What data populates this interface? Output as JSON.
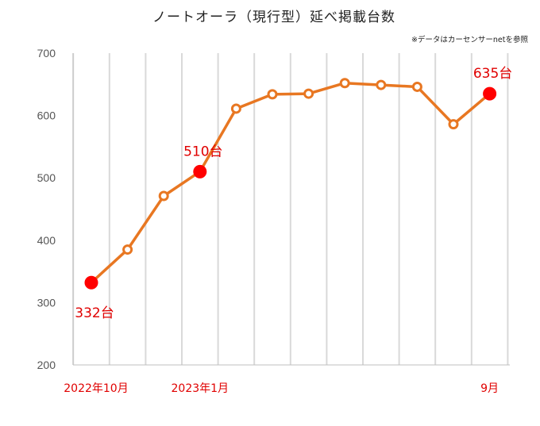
{
  "chart_data": {
    "type": "line",
    "title": "ノートオーラ（現行型）延べ掲載台数",
    "source_note": "※データはカーセンサーnetを参照",
    "x": [
      "2022-10",
      "2022-11",
      "2022-12",
      "2023-01",
      "2023-02",
      "2023-03",
      "2023-04",
      "2023-05",
      "2023-06",
      "2023-07",
      "2023-08",
      "2023-09"
    ],
    "series": [
      {
        "values": [
          332,
          385,
          471,
          510,
          611,
          634,
          635,
          652,
          649,
          646,
          586,
          635
        ]
      }
    ],
    "ylim": [
      200,
      700
    ],
    "yticks": [
      "200",
      "300",
      "400",
      "500",
      "600",
      "700"
    ],
    "xtick_labels": [
      {
        "index": 0,
        "text": "2022年10月"
      },
      {
        "index": 3,
        "text": "2023年1月"
      },
      {
        "index": 11,
        "text": "9月"
      }
    ],
    "data_labels": [
      {
        "index": 0,
        "text": "332台",
        "position": "below"
      },
      {
        "index": 3,
        "text": "510台",
        "position": "above"
      },
      {
        "index": 11,
        "text": "635台",
        "position": "above"
      }
    ],
    "highlight_indices": [
      0,
      3,
      11
    ],
    "grid": "vertical",
    "legend": "none",
    "colors": {
      "line": "#e87722",
      "highlight": "#ff0000",
      "label_text": "#e00000",
      "grid": "#d9d9d9",
      "axis": "#bfbfbf",
      "tick_text": "#555555",
      "title_text": "#222222"
    }
  }
}
